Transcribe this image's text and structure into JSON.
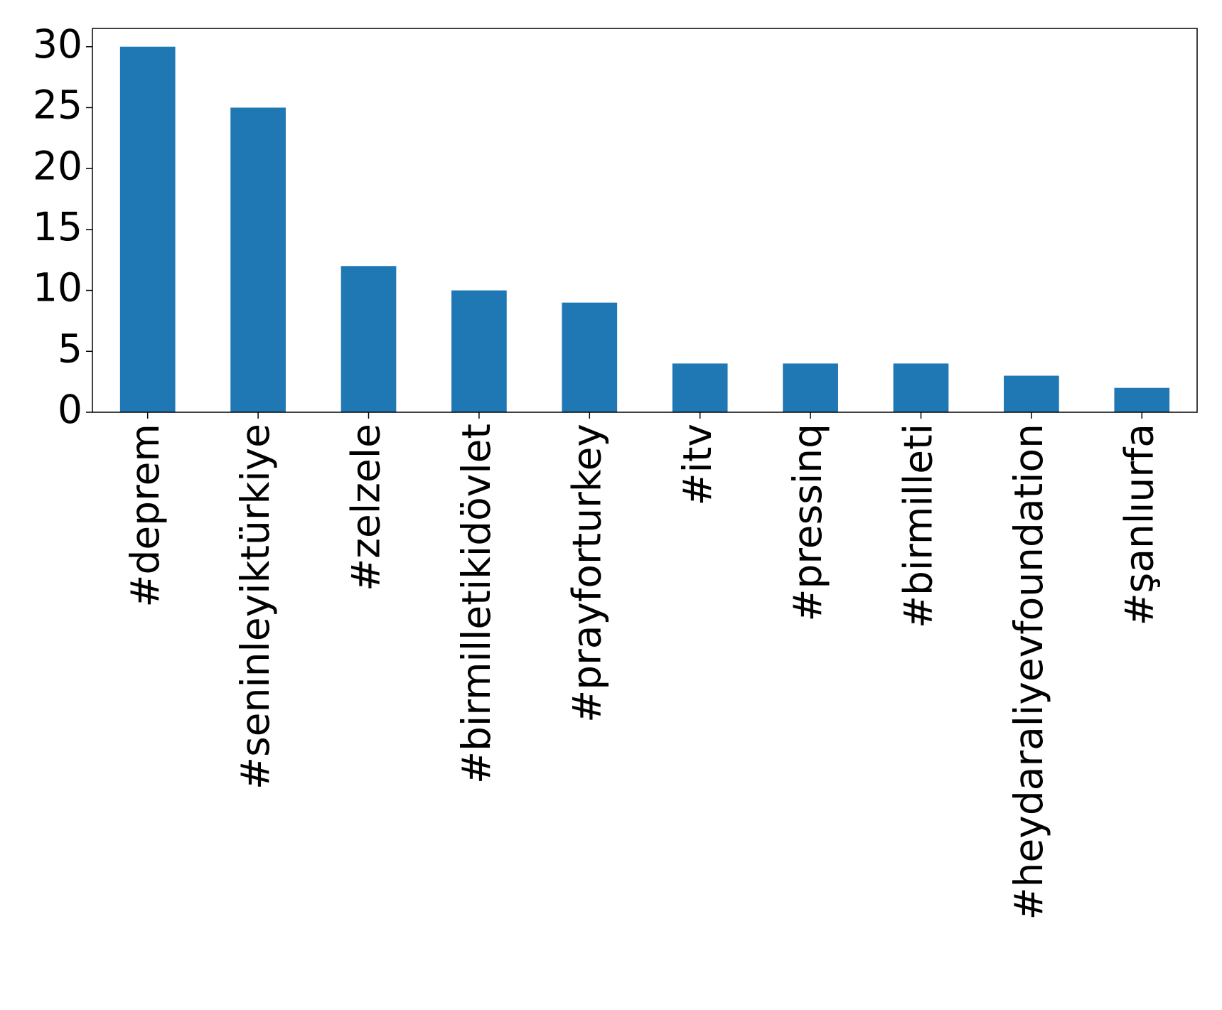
{
  "chart_data": {
    "type": "bar",
    "categories": [
      "#deprem",
      "#seninleyiktürkiye",
      "#zelzele",
      "#birmilletikidövlet",
      "#prayforturkey",
      "#itv",
      "#pressinq",
      "#birmilleti",
      "#heydaraliyevfoundation",
      "#şanlıurfa"
    ],
    "values": [
      30,
      25,
      12,
      10,
      9,
      4,
      4,
      4,
      3,
      2
    ],
    "color": "#1f77b4",
    "ylim": [
      0,
      31.5
    ],
    "yticks": [
      0,
      5,
      10,
      15,
      20,
      25,
      30
    ],
    "grid": false
  }
}
